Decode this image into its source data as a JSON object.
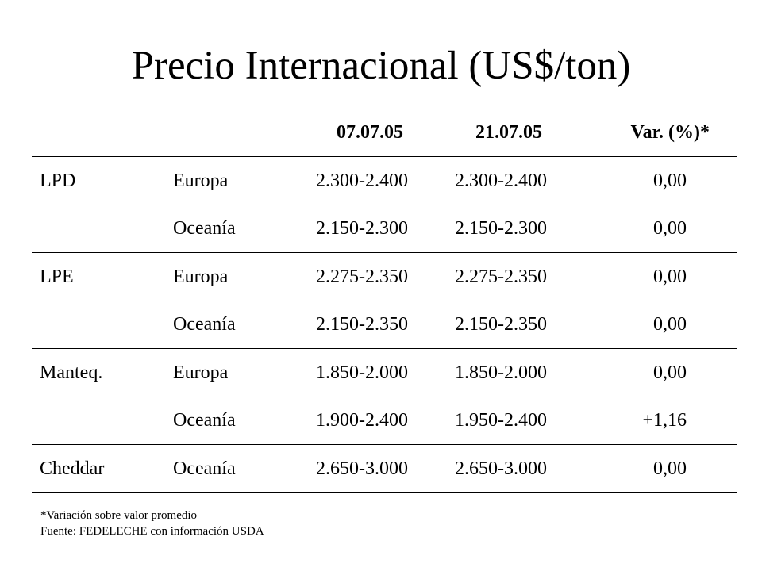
{
  "title": "Precio Internacional (US$/ton)",
  "table": {
    "headers": {
      "product": "",
      "region": "",
      "date1": "07.07.05",
      "date2": "21.07.05",
      "variation": "Var. (%)*"
    },
    "rows": [
      {
        "product": "LPD",
        "region": "Europa",
        "date1": "2.300-2.400",
        "date2": "2.300-2.400",
        "variation": "0,00",
        "group_end": false
      },
      {
        "product": "",
        "region": "Oceanía",
        "date1": "2.150-2.300",
        "date2": "2.150-2.300",
        "variation": "0,00",
        "group_end": true
      },
      {
        "product": "LPE",
        "region": "Europa",
        "date1": "2.275-2.350",
        "date2": "2.275-2.350",
        "variation": "0,00",
        "group_end": false
      },
      {
        "product": "",
        "region": "Oceanía",
        "date1": "2.150-2.350",
        "date2": "2.150-2.350",
        "variation": "0,00",
        "group_end": true
      },
      {
        "product": "Manteq.",
        "region": "Europa",
        "date1": "1.850-2.000",
        "date2": "1.850-2.000",
        "variation": "0,00",
        "group_end": false
      },
      {
        "product": "",
        "region": "Oceanía",
        "date1": "1.900-2.400",
        "date2": "1.950-2.400",
        "variation": "+1,16",
        "group_end": true
      },
      {
        "product": "Cheddar",
        "region": "Oceanía",
        "date1": "2.650-3.000",
        "date2": "2.650-3.000",
        "variation": "0,00",
        "group_end": true
      }
    ]
  },
  "footnotes": {
    "note": "*Variación sobre valor promedio",
    "source": "Fuente: FEDELECHE con información USDA"
  }
}
